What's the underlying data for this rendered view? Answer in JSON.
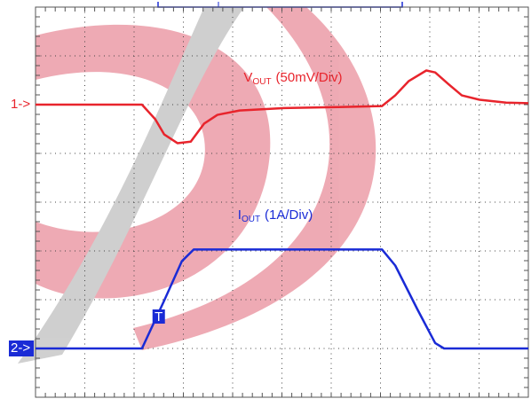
{
  "chart_data": {
    "type": "line",
    "xlim": [
      0,
      10
    ],
    "xticks": [
      0,
      1,
      2,
      3,
      4,
      5,
      6,
      7,
      8,
      9,
      10
    ],
    "ylim": [
      0,
      8
    ],
    "yticks": [
      0,
      1,
      2,
      3,
      4,
      5,
      6,
      7,
      8
    ],
    "grid": true,
    "annotations": [
      {
        "main": "V",
        "sub": "OUT",
        "rest": "(50mV/Div)",
        "color": "#e8242c"
      },
      {
        "main": "I",
        "sub": "OUT",
        "rest": "(1A/Div)",
        "color": "#1a2bd6"
      }
    ],
    "markers": [
      {
        "label": "1->",
        "color": "#e8242c",
        "value": 6
      },
      {
        "label": "2->",
        "color": "#1a2bd6",
        "value": 1
      }
    ],
    "trigger": {
      "label": "T",
      "x": 2.5
    },
    "series": [
      {
        "color": "#e8242c",
        "x": [
          0,
          2.16,
          2.43,
          2.61,
          2.88,
          3.15,
          3.42,
          3.69,
          4.14,
          5.05,
          6.13,
          7.03,
          7.3,
          7.57,
          7.93,
          8.11,
          8.38,
          8.65,
          9.01,
          9.55,
          10
        ],
        "values": [
          6.0,
          6.0,
          5.7,
          5.39,
          5.21,
          5.24,
          5.61,
          5.79,
          5.88,
          5.93,
          5.95,
          5.97,
          6.19,
          6.48,
          6.7,
          6.66,
          6.42,
          6.19,
          6.1,
          6.04,
          6.03
        ]
      },
      {
        "color": "#1a2bd6",
        "x": [
          0,
          2.16,
          2.61,
          2.97,
          3.21,
          7.03,
          7.3,
          7.75,
          8.11,
          8.29,
          10
        ],
        "values": [
          1.0,
          1.0,
          1.98,
          2.79,
          3.03,
          3.03,
          2.7,
          1.8,
          1.11,
          1.0,
          1.0
        ]
      }
    ]
  }
}
